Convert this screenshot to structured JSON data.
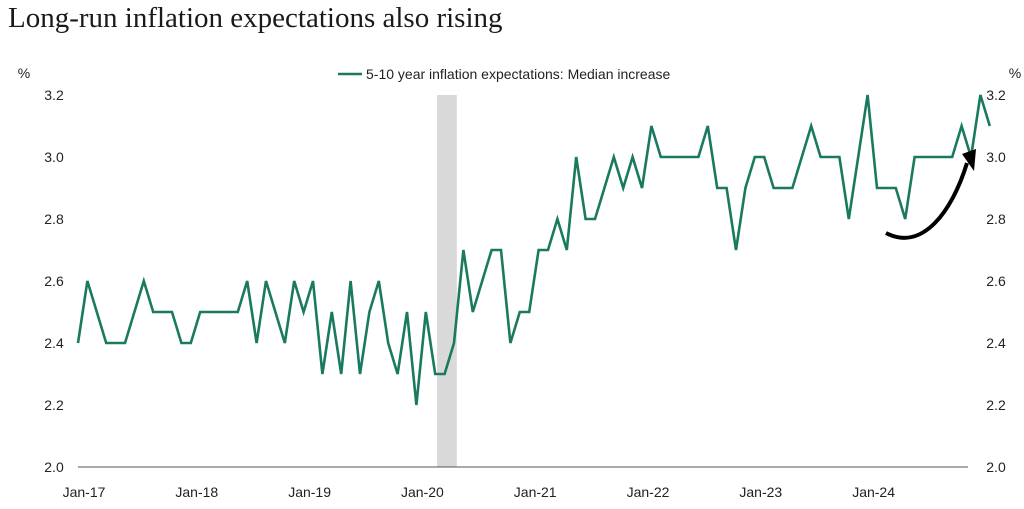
{
  "title": "Long-run inflation expectations also rising",
  "chart_data": {
    "type": "line",
    "title": "Long-run inflation expectations also rising",
    "y_unit_left": "%",
    "y_unit_right": "%",
    "ylim": [
      2.0,
      3.2
    ],
    "yticks": [
      "2.0",
      "2.2",
      "2.4",
      "2.6",
      "2.8",
      "3.0",
      "3.2"
    ],
    "xticks": [
      "Jan-17",
      "Jan-18",
      "Jan-19",
      "Jan-20",
      "Jan-21",
      "Jan-22",
      "Jan-23",
      "Jan-24"
    ],
    "x_start": "Jan-17",
    "frequency": "monthly",
    "legend_position": "top-center",
    "grid": false,
    "shaded_period": {
      "start": "Mar-20",
      "end": "Apr-20",
      "color": "#d9d9d9"
    },
    "annotation": "upward arrow",
    "series": [
      {
        "name": "5-10 year inflation expectations: Median increase",
        "color": "#1a7a60",
        "values": [
          2.4,
          2.6,
          2.5,
          2.4,
          2.4,
          2.4,
          2.5,
          2.6,
          2.5,
          2.5,
          2.5,
          2.4,
          2.4,
          2.5,
          2.5,
          2.5,
          2.5,
          2.5,
          2.6,
          2.4,
          2.6,
          2.5,
          2.4,
          2.6,
          2.5,
          2.6,
          2.3,
          2.5,
          2.3,
          2.6,
          2.3,
          2.5,
          2.6,
          2.4,
          2.3,
          2.5,
          2.2,
          2.5,
          2.3,
          2.3,
          2.4,
          2.7,
          2.5,
          2.6,
          2.7,
          2.7,
          2.4,
          2.5,
          2.5,
          2.7,
          2.7,
          2.8,
          2.7,
          3.0,
          2.8,
          2.8,
          2.9,
          3.0,
          2.9,
          3.0,
          2.9,
          3.1,
          3.0,
          3.0,
          3.0,
          3.0,
          3.0,
          3.1,
          2.9,
          2.9,
          2.7,
          2.9,
          3.0,
          3.0,
          2.9,
          2.9,
          2.9,
          3.0,
          3.1,
          3.0,
          3.0,
          3.0,
          2.8,
          3.0,
          3.2,
          2.9,
          2.9,
          2.9,
          2.8,
          3.0,
          3.0,
          3.0,
          3.0,
          3.0,
          3.1,
          3.0,
          3.2,
          3.1
        ]
      }
    ]
  }
}
